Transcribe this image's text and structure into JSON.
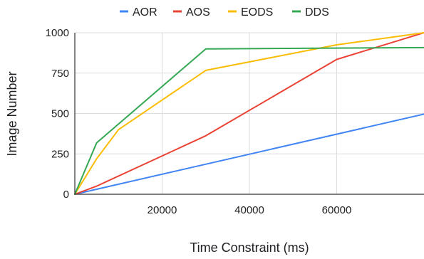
{
  "chart_data": {
    "type": "line",
    "title": "",
    "xlabel": "Time Constraint (ms)",
    "ylabel": "Image Number",
    "xlim": [
      0,
      80000
    ],
    "ylim": [
      0,
      1000
    ],
    "x_ticks": [
      20000,
      40000,
      60000
    ],
    "x_tick_labels": [
      "20000",
      "40000",
      "60000"
    ],
    "y_ticks": [
      0,
      250,
      500,
      750,
      1000
    ],
    "y_tick_labels": [
      "0",
      "250",
      "500",
      "750",
      "1000"
    ],
    "grid": true,
    "legend_position": "top",
    "series": [
      {
        "name": "AOR",
        "color": "#4285F4",
        "points": [
          [
            0,
            0
          ],
          [
            80000,
            496
          ]
        ]
      },
      {
        "name": "AOS",
        "color": "#EA4335",
        "points": [
          [
            0,
            0
          ],
          [
            5000,
            50
          ],
          [
            30000,
            362
          ],
          [
            60000,
            835
          ],
          [
            80000,
            1000
          ]
        ]
      },
      {
        "name": "EODS",
        "color": "#FBBC04",
        "points": [
          [
            0,
            0
          ],
          [
            5000,
            220
          ],
          [
            10000,
            400
          ],
          [
            30000,
            767
          ],
          [
            60000,
            925
          ],
          [
            80000,
            1000
          ]
        ]
      },
      {
        "name": "DDS",
        "color": "#34A853",
        "points": [
          [
            0,
            0
          ],
          [
            5000,
            318
          ],
          [
            30000,
            900
          ],
          [
            80000,
            908
          ]
        ]
      }
    ]
  }
}
